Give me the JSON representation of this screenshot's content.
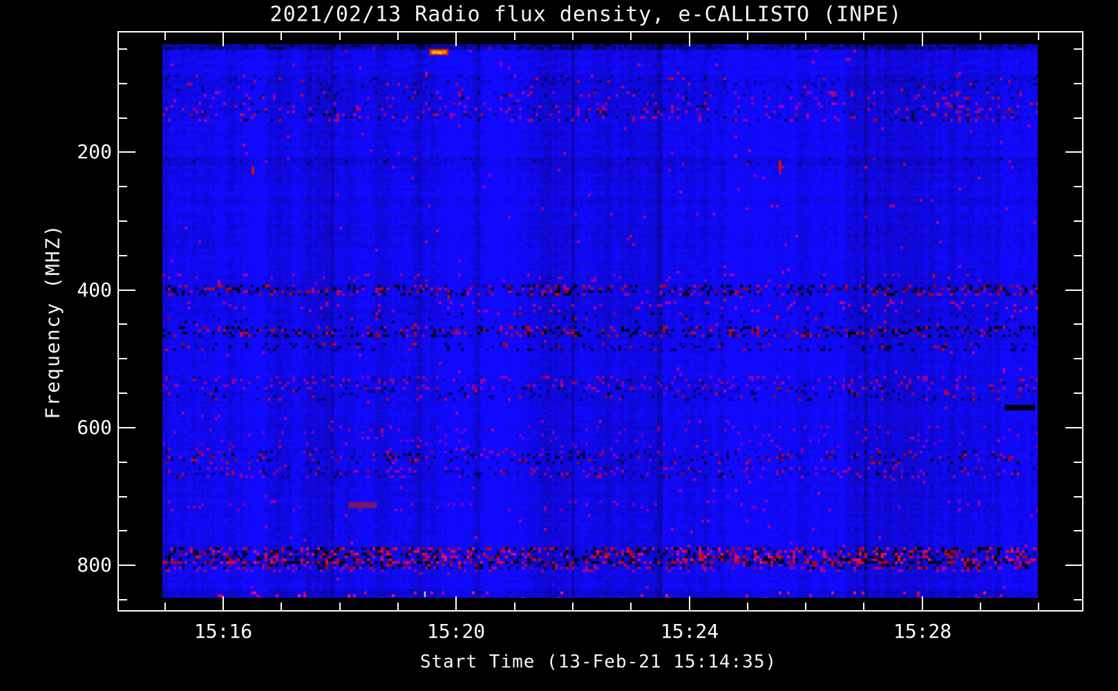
{
  "chart_data": {
    "type": "heatmap",
    "title": "2021/02/13  Radio flux density, e-CALLISTO (INPE)",
    "xlabel": "Start Time (13-Feb-21 15:14:35)",
    "ylabel": "Frequency (MHZ)",
    "x_axis": {
      "start": "15:14:11",
      "end": "15:30:46",
      "major_ticks": [
        {
          "label": "15:16",
          "time": "15:16:00"
        },
        {
          "label": "15:20",
          "time": "15:20:00"
        },
        {
          "label": "15:24",
          "time": "15:24:00"
        },
        {
          "label": "15:28",
          "time": "15:28:00"
        }
      ],
      "minor_interval_min": 1
    },
    "y_axis": {
      "min": 24,
      "max": 867,
      "unit": "MHZ",
      "major_ticks": [
        200,
        400,
        600,
        800
      ],
      "minor_step": 50,
      "direction": "increasing-downward"
    },
    "data_extent": {
      "t_start": "15:14:57",
      "t_end": "15:29:59",
      "f_min": 43,
      "f_max": 847
    },
    "palette": {
      "background": "#000000",
      "axis": "#ffffff",
      "base_blue": "#0000ee",
      "dark_dropout": "#000011",
      "rfi_maroon": "#8c1448",
      "rfi_red": "#d01205",
      "burst_orange": "#ff8400",
      "burst_core": "#ffcf40",
      "white_spike": "#eeeeee"
    },
    "features": {
      "bands": [
        {
          "f0": 88,
          "f1": 109,
          "type": "dim",
          "density": 0,
          "strength": 0.07
        },
        {
          "f0": 88,
          "f1": 109,
          "type": "dark-speckle",
          "density": 0.07,
          "strength": 0.4
        },
        {
          "f0": 113,
          "f1": 122,
          "type": "dark-speckle",
          "density": 0.08,
          "strength": 0.5
        },
        {
          "f0": 113,
          "f1": 122,
          "type": "red-speckle",
          "density": 0.06,
          "strength": 0.45
        },
        {
          "f0": 128,
          "f1": 139,
          "type": "red-speckle",
          "density": 0.09,
          "strength": 0.5
        },
        {
          "f0": 128,
          "f1": 139,
          "type": "dark-speckle",
          "density": 0.06,
          "strength": 0.5
        },
        {
          "f0": 143,
          "f1": 154,
          "type": "dark-speckle",
          "density": 0.1,
          "strength": 0.55
        },
        {
          "f0": 143,
          "f1": 154,
          "type": "red-speckle",
          "density": 0.06,
          "strength": 0.5
        },
        {
          "f0": 210,
          "f1": 218,
          "type": "dim",
          "density": 0,
          "strength": 0.06
        },
        {
          "f0": 210,
          "f1": 218,
          "type": "dark-speckle",
          "density": 0.04,
          "strength": 0.35
        },
        {
          "f0": 378,
          "f1": 386,
          "type": "red-speckle",
          "density": 0.05,
          "strength": 0.4
        },
        {
          "f0": 393,
          "f1": 405,
          "type": "dark-speckle",
          "density": 0.22,
          "strength": 0.8
        },
        {
          "f0": 393,
          "f1": 405,
          "type": "red-speckle",
          "density": 0.08,
          "strength": 0.5
        },
        {
          "f0": 420,
          "f1": 429,
          "type": "red-speckle",
          "density": 0.07,
          "strength": 0.55
        },
        {
          "f0": 436,
          "f1": 445,
          "type": "dark-speckle",
          "density": 0.07,
          "strength": 0.5
        },
        {
          "f0": 455,
          "f1": 468,
          "type": "dark-speckle",
          "density": 0.24,
          "strength": 0.85
        },
        {
          "f0": 455,
          "f1": 468,
          "type": "red-speckle",
          "density": 0.05,
          "strength": 0.55
        },
        {
          "f0": 477,
          "f1": 485,
          "type": "dark-speckle",
          "density": 0.12,
          "strength": 0.6
        },
        {
          "f0": 525,
          "f1": 541,
          "type": "red-speckle",
          "density": 0.1,
          "strength": 0.4
        },
        {
          "f0": 525,
          "f1": 541,
          "type": "dark-speckle",
          "density": 0.05,
          "strength": 0.4
        },
        {
          "f0": 543,
          "f1": 557,
          "type": "dark-speckle",
          "density": 0.12,
          "strength": 0.55
        },
        {
          "f0": 600,
          "f1": 648,
          "type": "red-speckle",
          "density": 0.04,
          "strength": 0.3
        },
        {
          "f0": 637,
          "f1": 651,
          "type": "dark-speckle",
          "density": 0.13,
          "strength": 0.6
        },
        {
          "f0": 660,
          "f1": 673,
          "type": "dark-speckle",
          "density": 0.1,
          "strength": 0.5
        },
        {
          "f0": 660,
          "f1": 673,
          "type": "red-speckle",
          "density": 0.08,
          "strength": 0.4
        },
        {
          "f0": 708,
          "f1": 718,
          "type": "red-speckle",
          "density": 0.04,
          "strength": 0.35
        },
        {
          "f0": 777,
          "f1": 794,
          "type": "dark-speckle",
          "density": 0.3,
          "strength": 0.85
        },
        {
          "f0": 777,
          "f1": 794,
          "type": "red-speckle",
          "density": 0.17,
          "strength": 0.75
        },
        {
          "f0": 794,
          "f1": 803,
          "type": "dark-speckle",
          "density": 0.28,
          "strength": 0.7
        },
        {
          "f0": 794,
          "f1": 803,
          "type": "red-speckle",
          "density": 0.06,
          "strength": 0.5
        },
        {
          "f0": 803,
          "f1": 809,
          "type": "red-speckle",
          "density": 0.1,
          "strength": 0.5
        },
        {
          "f0": 838,
          "f1": 847,
          "type": "dim",
          "density": 0,
          "strength": 0.1
        },
        {
          "f0": 838,
          "f1": 847,
          "type": "red-speckle",
          "density": 0.045,
          "strength": 0.85
        }
      ],
      "events": [
        {
          "type": "burst",
          "t0": "15:19:32",
          "t1": "15:19:52",
          "f0": 50,
          "f1": 59
        },
        {
          "type": "dropout",
          "t0": "15:29:25",
          "t1": "15:29:56",
          "f0": 567,
          "f1": 575
        },
        {
          "type": "rfi-dash",
          "t0": "15:16:29",
          "t1": "15:16:32",
          "f0": 221,
          "f1": 232
        },
        {
          "type": "rfi-dash",
          "t0": "15:25:32",
          "t1": "15:25:35",
          "f0": 212,
          "f1": 227
        },
        {
          "type": "rfi-dot",
          "t0": "15:19:51",
          "t1": "15:19:53",
          "f0": 407,
          "f1": 414
        },
        {
          "type": "rfi-dot",
          "t0": "15:28:11",
          "t1": "15:28:13",
          "f0": 376,
          "f1": 383
        },
        {
          "type": "white-dash",
          "t0": "15:19:27",
          "t1": "15:19:29",
          "f0": 838,
          "f1": 846
        },
        {
          "type": "smudge",
          "t0": "15:18:09",
          "t1": "15:18:38",
          "f0": 708,
          "f1": 717
        }
      ]
    }
  }
}
